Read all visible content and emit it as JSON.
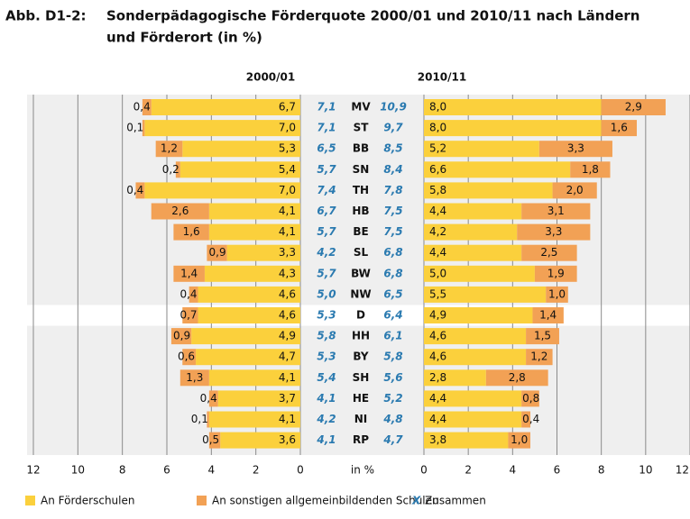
{
  "chart_data": {
    "type": "butterfly",
    "label": "Abb. D1-2:",
    "title": [
      "Sonderpädagogische Förderquote 2000/01 und 2010/11 nach Ländern",
      "und Förderort (in %)"
    ],
    "unit_label": "in %",
    "categories": [
      "MV",
      "ST",
      "BB",
      "SN",
      "TH",
      "HB",
      "BE",
      "SL",
      "BW",
      "NW",
      "D",
      "HH",
      "BY",
      "SH",
      "HE",
      "NI",
      "RP"
    ],
    "highlight": "D",
    "legend": [
      {
        "name": "An Förderschulen",
        "color": "#fbd03c"
      },
      {
        "name": "An sonstigen allgemeinbildenden Schulen",
        "color": "#f2a155"
      },
      {
        "symbol": "X",
        "name": "Zusammen",
        "color": "#2a7ab0"
      }
    ],
    "panels": [
      {
        "title": "2000/01",
        "side": "left",
        "xlim": [
          0,
          12
        ],
        "xticks": [
          0,
          2,
          4,
          6,
          8,
          10,
          12
        ],
        "series": [
          {
            "values": [
              6.7,
              7.0,
              5.3,
              5.4,
              7.0,
              4.1,
              4.1,
              3.3,
              4.3,
              4.6,
              4.6,
              4.9,
              4.7,
              4.1,
              3.7,
              4.1,
              3.6
            ],
            "value_labels": [
              "6,7",
              "7,0",
              "5,3",
              "5,4",
              "7,0",
              "4,1",
              "4,1",
              "3,3",
              "4,3",
              "4,6",
              "4,6",
              "4,9",
              "4,7",
              "4,1",
              "3,7",
              "4,1",
              "3,6"
            ]
          },
          {
            "values": [
              0.4,
              0.1,
              1.2,
              0.2,
              0.4,
              2.6,
              1.6,
              0.9,
              1.4,
              0.4,
              0.7,
              0.9,
              0.6,
              1.3,
              0.4,
              0.1,
              0.5
            ],
            "value_labels": [
              "0,4",
              "0,1",
              "1,2",
              "0,2",
              "0,4",
              "2,6",
              "1,6",
              "0,9",
              "1,4",
              "0,4",
              "0,7",
              "0,9",
              "0,6",
              "1,3",
              "0,4",
              "0,1",
              "0,5"
            ]
          }
        ],
        "totals": {
          "values": [
            7.1,
            7.1,
            6.5,
            5.7,
            7.4,
            6.7,
            5.7,
            4.2,
            5.7,
            5.0,
            5.3,
            5.8,
            5.3,
            5.4,
            4.1,
            4.2,
            4.1
          ],
          "value_labels": [
            "7,1",
            "7,1",
            "6,5",
            "5,7",
            "7,4",
            "6,7",
            "5,7",
            "4,2",
            "5,7",
            "5,0",
            "5,3",
            "5,8",
            "5,3",
            "5,4",
            "4,1",
            "4,2",
            "4,1"
          ]
        }
      },
      {
        "title": "2010/11",
        "side": "right",
        "xlim": [
          0,
          12
        ],
        "xticks": [
          0,
          2,
          4,
          6,
          8,
          10,
          12
        ],
        "series": [
          {
            "values": [
              8.0,
              8.0,
              5.2,
              6.6,
              5.8,
              4.4,
              4.2,
              4.4,
              5.0,
              5.5,
              4.9,
              4.6,
              4.6,
              2.8,
              4.4,
              4.4,
              3.8
            ],
            "value_labels": [
              "8,0",
              "8,0",
              "5,2",
              "6,6",
              "5,8",
              "4,4",
              "4,2",
              "4,4",
              "5,0",
              "5,5",
              "4,9",
              "4,6",
              "4,6",
              "2,8",
              "4,4",
              "4,4",
              "3,8"
            ]
          },
          {
            "values": [
              2.9,
              1.6,
              3.3,
              1.8,
              2.0,
              3.1,
              3.3,
              2.5,
              1.9,
              1.0,
              1.4,
              1.5,
              1.2,
              2.8,
              0.8,
              0.4,
              1.0
            ],
            "value_labels": [
              "2,9",
              "1,6",
              "3,3",
              "1,8",
              "2,0",
              "3,1",
              "3,3",
              "2,5",
              "1,9",
              "1,0",
              "1,4",
              "1,5",
              "1,2",
              "2,8",
              "0,8",
              "0,4",
              "1,0"
            ]
          }
        ],
        "totals": {
          "values": [
            10.9,
            9.7,
            8.5,
            8.4,
            7.8,
            7.5,
            7.5,
            6.8,
            6.8,
            6.5,
            6.4,
            6.1,
            5.8,
            5.6,
            5.2,
            4.8,
            4.7
          ],
          "value_labels": [
            "10,9",
            "9,7",
            "8,5",
            "8,4",
            "7,8",
            "7,5",
            "7,5",
            "6,8",
            "6,8",
            "6,5",
            "6,4",
            "6,1",
            "5,8",
            "5,6",
            "5,2",
            "4,8",
            "4,7"
          ]
        }
      }
    ]
  }
}
